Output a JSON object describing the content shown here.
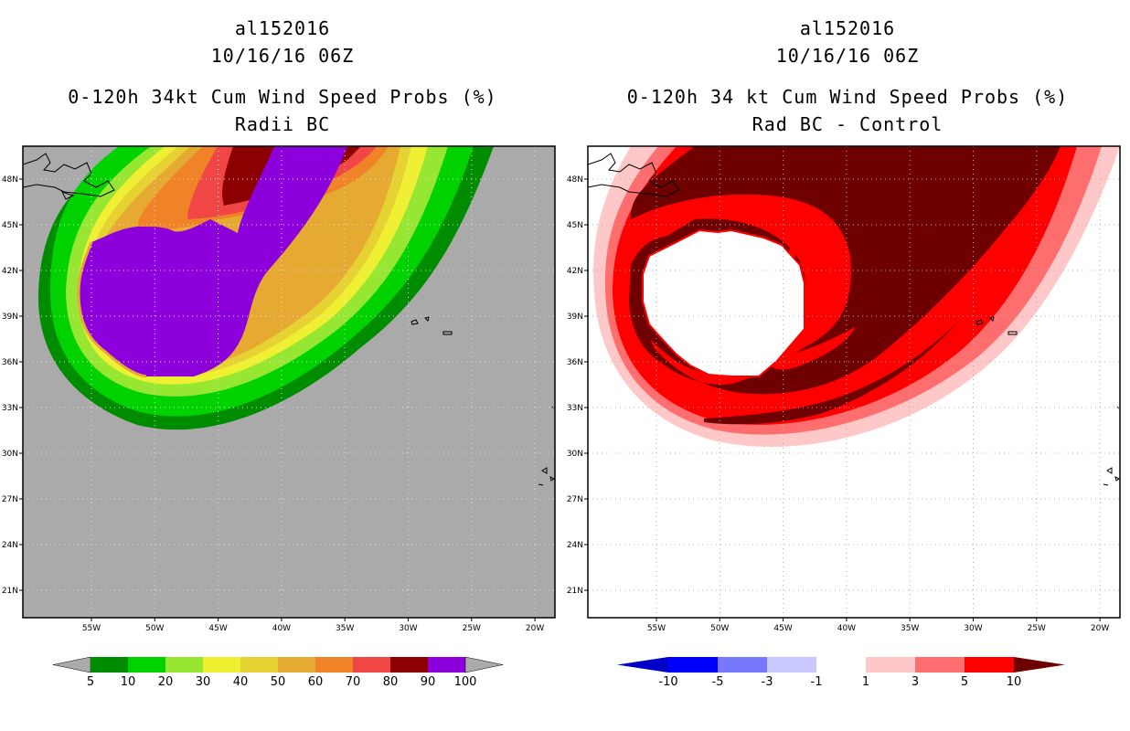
{
  "left_panel": {
    "storm_id": "al152016",
    "datetime": "10/16/16 06Z",
    "title": "0-120h 34kt Cum Wind Speed Probs (%)",
    "subtitle": "Radii BC",
    "colorbar_labels": [
      "5",
      "10",
      "20",
      "30",
      "40",
      "50",
      "60",
      "70",
      "80",
      "90",
      "100"
    ],
    "colorbar_colors": [
      "#008c00",
      "#00d200",
      "#96e632",
      "#f0f032",
      "#e6d232",
      "#e6aa32",
      "#f08228",
      "#f04646",
      "#8c0000",
      "#8c00dc"
    ],
    "background": "#aaaaaa"
  },
  "right_panel": {
    "storm_id": "al152016",
    "datetime": "10/16/16 06Z",
    "title": "0-120h 34 kt Cum Wind Speed Probs (%)",
    "subtitle": "Rad BC - Control",
    "colorbar_labels": [
      "-10",
      "-5",
      "-3",
      "-1",
      "1",
      "3",
      "5",
      "10"
    ],
    "colorbar_colors": [
      "#0000c8",
      "#0000ff",
      "#7878ff",
      "#c8c8ff",
      "#ffffff",
      "#ffc8c8",
      "#ff6e6e",
      "#ff0000",
      "#6e0000"
    ],
    "background": "#ffffff"
  },
  "map_axes": {
    "lat_labels": [
      "48N",
      "45N",
      "42N",
      "39N",
      "36N",
      "33N",
      "30N",
      "27N",
      "24N",
      "21N"
    ],
    "lon_labels": [
      "55W",
      "50W",
      "45W",
      "40W",
      "35W",
      "30W",
      "25W",
      "20W"
    ]
  }
}
